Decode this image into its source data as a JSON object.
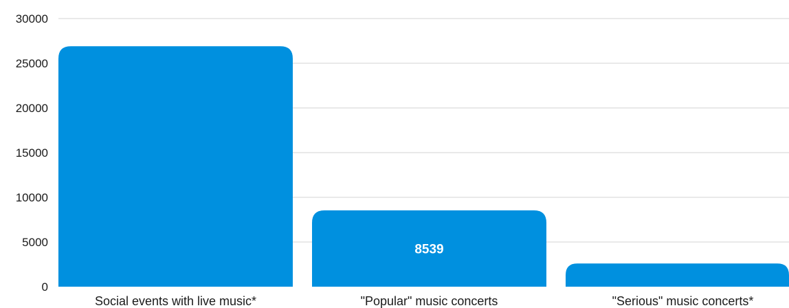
{
  "chart_data": {
    "type": "bar",
    "title": "",
    "xlabel": "",
    "ylabel": "",
    "categories": [
      "Social events with live music*",
      "\"Popular\" music concerts",
      "\"Serious\" music concerts*"
    ],
    "values": [
      26900,
      8539,
      2600
    ],
    "data_labels": [
      "",
      "8539",
      ""
    ],
    "ylim": [
      0,
      30000
    ],
    "yticks": [
      "0",
      "5000",
      "10000",
      "15000",
      "20000",
      "25000",
      "30000"
    ],
    "grid": true,
    "legend": "none",
    "colors": {
      "bar": "#0090df",
      "grid": "#d3d3d3",
      "text": "#1a1a1a",
      "data_label": "#ffffff"
    }
  }
}
